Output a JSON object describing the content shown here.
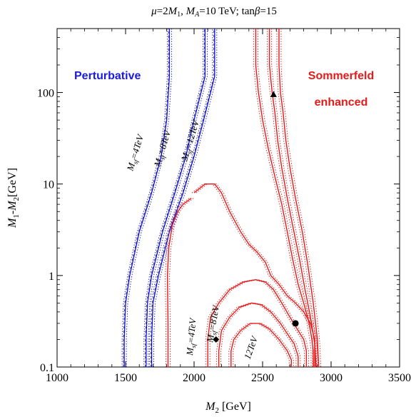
{
  "chart_data": {
    "type": "line",
    "title": "μ=2M₁, M_A=10 TeV; tanβ=15",
    "title_parts": {
      "mu": "μ",
      "eq1": "=2",
      "m": "M",
      "sub1": "1",
      "sep1": ", ",
      "ma": "M",
      "subA": "A",
      "eq2": "=10 TeV; tan",
      "beta": "β",
      "eq3": "=15"
    },
    "xlabel": "M2 [GeV]",
    "xlabel_parts": {
      "m": "M",
      "sub": "2",
      "rest": " [GeV]"
    },
    "ylabel": "M1-M2[GeV]",
    "ylabel_parts": {
      "m1": "M",
      "s1": "1",
      "dash": "-",
      "m2": "M",
      "s2": "2",
      "unit": "[GeV]"
    },
    "xlim": [
      1000,
      3500
    ],
    "ylim": [
      0.1,
      500
    ],
    "y_scale": "log",
    "grid": false,
    "x_ticks": [
      1000,
      1500,
      2000,
      2500,
      3000,
      3500
    ],
    "x_tick_labels": [
      "1000",
      "1500",
      "2000",
      "2500",
      "3000",
      "3500"
    ],
    "y_ticks": [
      0.1,
      1,
      10,
      100
    ],
    "y_tick_labels": [
      "0.1",
      "1",
      "10",
      "100"
    ],
    "region_labels": {
      "perturbative": "Perturbative",
      "sommerfeld_1": "Sommerfeld",
      "sommerfeld_2": "enhanced"
    },
    "colors": {
      "perturbative": "#1a1ae6",
      "sommerfeld": "#e61a1a",
      "axis": "#000000"
    },
    "contour_labels": {
      "blue": [
        "Msf=4TeV",
        "Msf=8TeV",
        "Msf=12TeV"
      ],
      "red": [
        "Msf=4TeV",
        "Msf=8TeV",
        "12TeV"
      ],
      "m": "M",
      "sf": "sf",
      "v4": "=4TeV",
      "v8": "=8TeV",
      "v12": "=12TeV",
      "v12short": "12TeV"
    },
    "series": [
      {
        "group": "perturbative",
        "style": "solid",
        "x": [
          1490,
          1490,
          1500,
          1530,
          1600,
          1690,
          1760,
          1800,
          1820,
          1820
        ],
        "y": [
          0.1,
          0.2,
          0.5,
          1,
          3,
          8,
          20,
          50,
          150,
          500
        ]
      },
      {
        "group": "perturbative",
        "style": "solid",
        "x": [
          1650,
          1650,
          1660,
          1690,
          1770,
          1860,
          1940,
          2000,
          2080,
          2080
        ],
        "y": [
          0.1,
          0.2,
          0.5,
          1,
          3,
          8,
          20,
          50,
          150,
          500
        ]
      },
      {
        "group": "perturbative",
        "style": "solid",
        "x": [
          1690,
          1690,
          1700,
          1740,
          1820,
          1920,
          2000,
          2070,
          2150,
          2150
        ],
        "y": [
          0.1,
          0.2,
          0.5,
          1,
          3,
          8,
          20,
          50,
          150,
          500
        ]
      },
      {
        "group": "sommerfeld",
        "style": "solid",
        "x": [
          1810,
          1810,
          1805,
          1815,
          1840,
          1880,
          1920,
          1980
        ],
        "y": [
          0.1,
          0.3,
          1,
          2,
          3.5,
          5,
          6,
          7
        ]
      },
      {
        "group": "sommerfeld",
        "style": "solid",
        "x": [
          2000,
          2080,
          2150,
          2200,
          2260,
          2340,
          2400,
          2460,
          2520,
          2560,
          2620,
          2680,
          2740,
          2800,
          2850,
          2880,
          2880
        ],
        "y": [
          8,
          10,
          10,
          8,
          5,
          3,
          2.2,
          1.8,
          1.4,
          1.0,
          0.8,
          0.6,
          0.5,
          0.4,
          0.3,
          0.2,
          0.1
        ]
      },
      {
        "group": "sommerfeld",
        "style": "solid",
        "x": [
          2100,
          2100,
          2120,
          2180,
          2260,
          2360,
          2450,
          2520,
          2580,
          2640,
          2700,
          2760,
          2800,
          2820,
          2820
        ],
        "y": [
          0.1,
          0.2,
          0.35,
          0.5,
          0.7,
          0.85,
          0.9,
          0.85,
          0.7,
          0.5,
          0.35,
          0.25,
          0.2,
          0.15,
          0.1
        ]
      },
      {
        "group": "sommerfeld",
        "style": "solid",
        "x": [
          2180,
          2180,
          2200,
          2260,
          2330,
          2420,
          2490,
          2560,
          2630,
          2690,
          2730,
          2760,
          2760
        ],
        "y": [
          0.1,
          0.15,
          0.25,
          0.35,
          0.45,
          0.5,
          0.48,
          0.4,
          0.3,
          0.22,
          0.18,
          0.13,
          0.1
        ]
      },
      {
        "group": "sommerfeld",
        "style": "solid",
        "x": [
          2270,
          2270,
          2290,
          2340,
          2410,
          2480,
          2550,
          2620,
          2680,
          2710,
          2710
        ],
        "y": [
          0.1,
          0.15,
          0.2,
          0.25,
          0.3,
          0.3,
          0.26,
          0.2,
          0.15,
          0.12,
          0.1
        ]
      },
      {
        "group": "sommerfeld",
        "style": "solid",
        "x": [
          2450,
          2450,
          2470,
          2500,
          2540,
          2590,
          2640,
          2680,
          2720,
          2760,
          2800,
          2840,
          2860,
          2870,
          2870
        ],
        "y": [
          500,
          200,
          100,
          50,
          25,
          12,
          6,
          3,
          1.5,
          0.8,
          0.5,
          0.3,
          0.2,
          0.15,
          0.1
        ]
      },
      {
        "group": "sommerfeld",
        "style": "solid",
        "x": [
          2550,
          2550,
          2570,
          2590,
          2610,
          2640,
          2680,
          2720,
          2770,
          2810,
          2850,
          2880,
          2890
        ],
        "y": [
          500,
          200,
          100,
          60,
          30,
          15,
          7,
          3.5,
          1.5,
          0.7,
          0.35,
          0.18,
          0.1
        ]
      },
      {
        "group": "sommerfeld",
        "style": "solid",
        "x": [
          2620,
          2620,
          2630,
          2650,
          2670,
          2700,
          2740,
          2790,
          2830,
          2870,
          2900,
          2910
        ],
        "y": [
          500,
          200,
          100,
          60,
          30,
          15,
          7,
          3,
          1.3,
          0.5,
          0.2,
          0.1
        ]
      }
    ],
    "markers": [
      {
        "shape": "triangle",
        "x": 2580,
        "y": 95
      },
      {
        "shape": "diamond",
        "x": 2160,
        "y": 0.2
      },
      {
        "shape": "circle",
        "x": 2740,
        "y": 0.3
      }
    ]
  }
}
